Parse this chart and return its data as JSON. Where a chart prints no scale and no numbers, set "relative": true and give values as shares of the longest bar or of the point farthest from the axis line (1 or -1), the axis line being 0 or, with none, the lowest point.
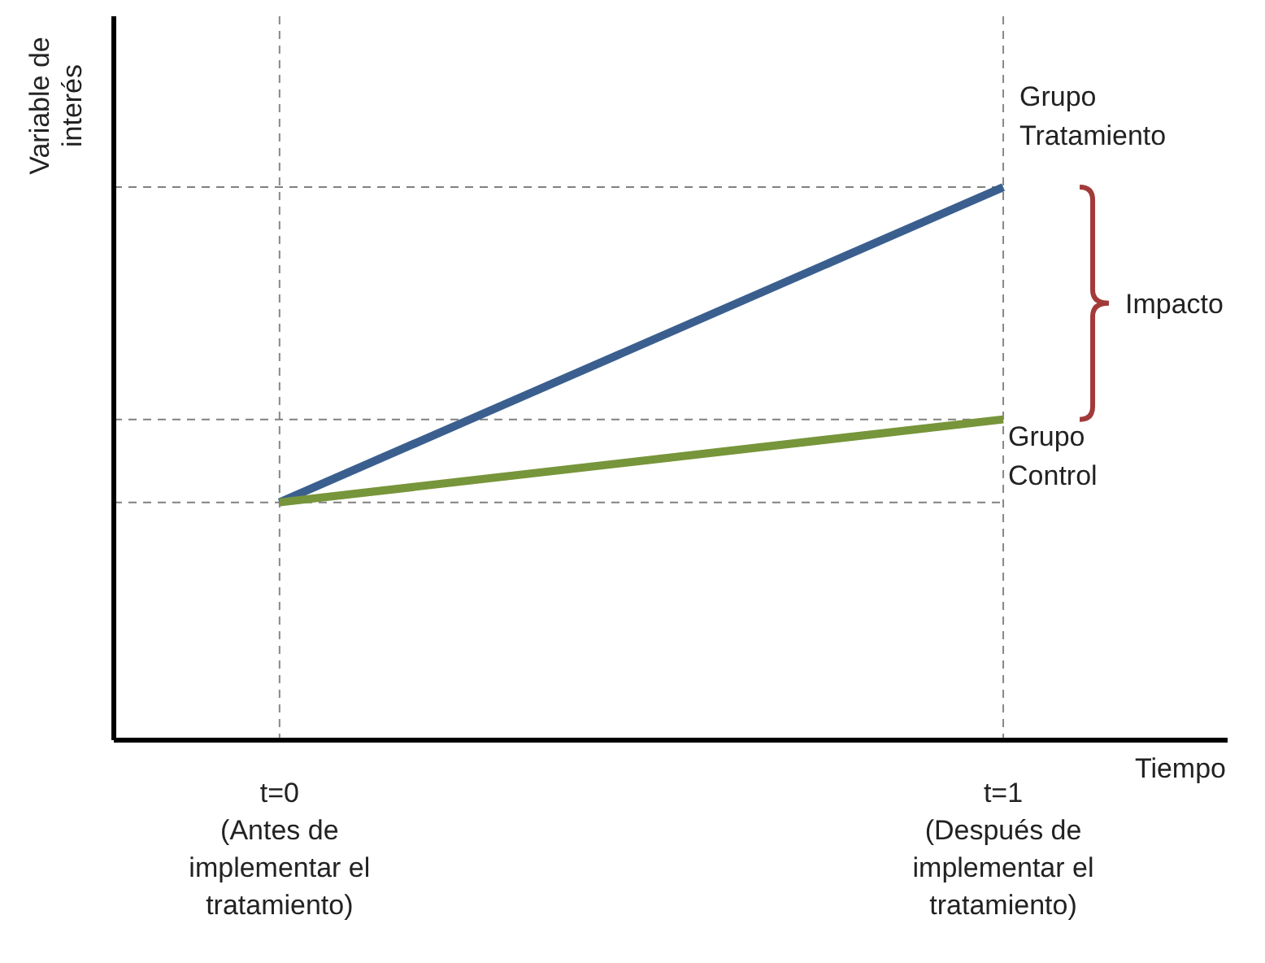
{
  "chart_data": {
    "type": "line",
    "relative": true,
    "ylabel": "Variable de interés",
    "xlabel": "Tiempo",
    "categories": [
      "t=0\n(Antes de\nimplementar el\ntratamiento)",
      "t=1\n(Después de\nimplementar el\ntratamiento)"
    ],
    "series": [
      {
        "name": "Grupo Tratamiento",
        "color": "#3a5f8f",
        "values": [
          0.43,
          1
        ]
      },
      {
        "name": "Grupo Control",
        "color": "#77953a",
        "values": [
          0.43,
          0.58
        ]
      }
    ],
    "ref_lines": [
      {
        "axis": "y",
        "value": 1,
        "line_style": "dashed",
        "color": "#808080"
      },
      {
        "axis": "y",
        "value": 0.58,
        "line_style": "dashed",
        "color": "#808080"
      },
      {
        "axis": "y",
        "value": 0.43,
        "line_style": "dashed",
        "color": "#808080"
      }
    ],
    "grid": "x",
    "marker": "none",
    "line_style": "solid",
    "annotations": [
      "Impacto"
    ]
  }
}
